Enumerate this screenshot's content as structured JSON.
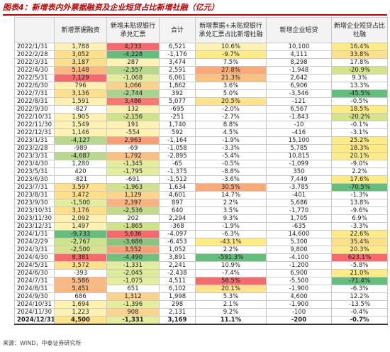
{
  "title": "图表4：新增表内外票据融资及企业短贷占比新增社融（亿元）",
  "source": "来源：WIND，中泰证券研究所",
  "headers": [
    "",
    "新增票据融资",
    "新增未贴现银行承兑汇票",
    "合计",
    "新增票据+未贴现银行承兑汇票占比新增社融",
    "新增企业短贷",
    "新增企业短贷占比社融"
  ],
  "colors": {
    "green": "#63be7b",
    "yellow": "#ffeb84",
    "red": "#f8696b",
    "white": "#ffffff"
  },
  "rows": [
    [
      "2022/1/31",
      "1,788",
      "4,733",
      "6,521",
      "10.6%",
      "10,100",
      "16.4%"
    ],
    [
      "2022/2/28",
      "3,052",
      "-4,228",
      "-1,176",
      "-9.7%",
      "4,111",
      "33.8%"
    ],
    [
      "2022/3/31",
      "3,187",
      "287",
      "3,474",
      "7.5%",
      "8,298",
      "17.8%"
    ],
    [
      "2022/4/30",
      "5,148",
      "-2,557",
      "2,591",
      "27.8%",
      "-1,948",
      "-20.9%"
    ],
    [
      "2022/5/31",
      "7,129",
      "-1,068",
      "6,061",
      "21.3%",
      "2,642",
      "9.3%"
    ],
    [
      "2022/6/30",
      "796",
      "1,066",
      "1,862",
      "3.6%",
      "6,906",
      "13.3%"
    ],
    [
      "2022/7/31",
      "3,136",
      "-2,744",
      "392",
      "5.0%",
      "-3,546",
      "-45.5%"
    ],
    [
      "2022/8/31",
      "1,591",
      "3,486",
      "5,077",
      "20.5%",
      "-121",
      "-0.5%"
    ],
    [
      "2022/9/30",
      "-827",
      "132",
      "-695",
      "-2.0%",
      "6,567",
      "18.5%"
    ],
    [
      "2022/10/31",
      "1,905",
      "-2,156",
      "-251",
      "-2.7%",
      "-1,843",
      "-20.2%"
    ],
    [
      "2022/11/30",
      "1,549",
      "191",
      "1,740",
      "8.8%",
      "-10",
      "-0.1%"
    ],
    [
      "2022/12/31",
      "1,146",
      "-554",
      "592",
      "4.5%",
      "-416",
      "-3.1%"
    ],
    [
      "2023/1/31",
      "-4,127",
      "2,963",
      "-1,164",
      "-1.9%",
      "15,100",
      "25.2%"
    ],
    [
      "2023/2/28",
      "-989",
      "-69",
      "-1,058",
      "-3.3%",
      "5,785",
      "18.3%"
    ],
    [
      "2023/3/31",
      "-4,687",
      "1,792",
      "-2,895",
      "-5.4%",
      "10,815",
      "20.1%"
    ],
    [
      "2023/4/30",
      "1,280",
      "-1,345",
      "-65",
      "-0.5%",
      "-1,099",
      "-9.0%"
    ],
    [
      "2023/5/31",
      "420",
      "-1,795",
      "-1,375",
      "-8.8%",
      "350",
      "2.2%"
    ],
    [
      "2023/6/30",
      "-821",
      "-691",
      "-1,512",
      "-3.6%",
      "7,449",
      "17.6%"
    ],
    [
      "2023/7/31",
      "3,597",
      "-1,963",
      "1,634",
      "30.5%",
      "-3,785",
      "-70.5%"
    ],
    [
      "2023/8/31",
      "3,472",
      "1,129",
      "4,601",
      "14.7%",
      "-401",
      "-1.3%"
    ],
    [
      "2023/9/30",
      "-1,500",
      "2,397",
      "897",
      "2.2%",
      "5,686",
      "13.8%"
    ],
    [
      "2023/10/31",
      "3,176",
      "-2,536",
      "640",
      "3.5%",
      "-1,770",
      "-9.6%"
    ],
    [
      "2023/11/30",
      "2,092",
      "202",
      "2,294",
      "9.3%",
      "1,705",
      "6.9%"
    ],
    [
      "2023/12/31",
      "1,497",
      "-1,865",
      "-368",
      "-1.9%",
      "-635",
      "-3.3%"
    ],
    [
      "2024/1/31",
      "-9,733",
      "5,636",
      "-4,097",
      "-6.3%",
      "14,600",
      "22.6%"
    ],
    [
      "2024/2/29",
      "-2,767",
      "-3,686",
      "-6,453",
      "-43.1%",
      "5,300",
      "35.4%"
    ],
    [
      "2024/3/31",
      "-2,500",
      "3,552",
      "1,052",
      "2.2%",
      "9,800",
      "20.3%"
    ],
    [
      "2024/4/30",
      "8,381",
      "-4,490",
      "3,891",
      "-591.3%",
      "-4,100",
      "623.1%"
    ],
    [
      "2024/5/31",
      "3,572",
      "-1,331",
      "2,241",
      "10.9%",
      "-1,200",
      "-5.8%"
    ],
    [
      "2024/6/30",
      "-393",
      "-2,045",
      "-2,438",
      "-7.4%",
      "6,900",
      "21.0%"
    ],
    [
      "2024/7/31",
      "5,586",
      "-1,075",
      "4,511",
      "58.5%",
      "-5,500",
      "-71.4%"
    ],
    [
      "2024/8/31",
      "5,451",
      "651",
      "6,102",
      "20.1%",
      "-1,900",
      "-6.3%"
    ],
    [
      "2024/9/30",
      "686",
      "1,312",
      "1,998",
      "5.3%",
      "4,600",
      "12.2%"
    ],
    [
      "2024/10/31",
      "1,694",
      "-1,396",
      "298",
      "2.1%",
      "-1,900",
      "-13.5%"
    ],
    [
      "2024/11/30",
      "1,223",
      "908",
      "2,131",
      "9.2%",
      "-100",
      "-0.4%"
    ],
    [
      "2024/12/31",
      "4,500",
      "-1,331",
      "3,169",
      "11.1%",
      "-200",
      "-0.7%"
    ]
  ],
  "cell_colors": [
    [
      "#ffffff",
      "#fff2b0",
      "#f8696b",
      "#ffffff",
      "#fff2b0",
      "#ffffff",
      "#ffeb84"
    ],
    [
      "#ffffff",
      "#ffe08a",
      "#63be7b",
      "#ffffff",
      "#ffeb84",
      "#ffffff",
      "#ffe08a"
    ],
    [
      "#ffffff",
      "#ffe08a",
      "#fff2b0",
      "#ffffff",
      "#ffffff",
      "#ffffff",
      "#ffffff"
    ],
    [
      "#ffffff",
      "#fcb97f",
      "#b9d98a",
      "#ffffff",
      "#fbaa77",
      "#ffffff",
      "#d6e38a"
    ],
    [
      "#ffffff",
      "#f8696b",
      "#e4ed9c",
      "#ffffff",
      "#fcc07f",
      "#ffffff",
      "#ffffff"
    ],
    [
      "#ffffff",
      "#fff2b0",
      "#fbd38c",
      "#ffffff",
      "#ffffff",
      "#ffffff",
      "#ffffff"
    ],
    [
      "#ffffff",
      "#ffe08a",
      "#a8d38a",
      "#ffffff",
      "#ffffff",
      "#ffffff",
      "#63be7b"
    ],
    [
      "#ffffff",
      "#fff2b0",
      "#f8796e",
      "#ffffff",
      "#fce38c",
      "#ffffff",
      "#ffffff"
    ],
    [
      "#ffffff",
      "#ffffff",
      "#fff2b0",
      "#ffffff",
      "#ffffff",
      "#ffffff",
      "#ffeb84"
    ],
    [
      "#ffffff",
      "#fff2b0",
      "#d1e28c",
      "#ffffff",
      "#ffffff",
      "#ffffff",
      "#d6e38a"
    ],
    [
      "#ffffff",
      "#fff2b0",
      "#fff2b0",
      "#ffffff",
      "#ffffff",
      "#ffffff",
      "#ffffff"
    ],
    [
      "#ffffff",
      "#fff2b0",
      "#fff2b0",
      "#ffffff",
      "#ffffff",
      "#ffffff",
      "#ffffff"
    ],
    [
      "#ffffff",
      "#b9d98a",
      "#fa9f75",
      "#ffffff",
      "#ffffff",
      "#ffffff",
      "#ffeb84"
    ],
    [
      "#ffffff",
      "#ffffff",
      "#ffffff",
      "#ffffff",
      "#ffffff",
      "#ffffff",
      "#ffeb84"
    ],
    [
      "#ffffff",
      "#b9d98a",
      "#fbbf7e",
      "#ffffff",
      "#ffffff",
      "#ffffff",
      "#ffeb84"
    ],
    [
      "#ffffff",
      "#ffffff",
      "#e4ed9c",
      "#ffffff",
      "#ffffff",
      "#ffffff",
      "#ffffff"
    ],
    [
      "#ffffff",
      "#ffffff",
      "#e4ed9c",
      "#ffffff",
      "#ffffff",
      "#ffffff",
      "#ffffff"
    ],
    [
      "#ffffff",
      "#ffffff",
      "#ffffff",
      "#ffffff",
      "#ffffff",
      "#ffffff",
      "#ffeb84"
    ],
    [
      "#ffffff",
      "#ffe08a",
      "#d1e28c",
      "#ffffff",
      "#fbaa77",
      "#ffffff",
      "#63be7b"
    ],
    [
      "#ffffff",
      "#ffe08a",
      "#fbd38c",
      "#ffffff",
      "#ffffff",
      "#ffffff",
      "#ffffff"
    ],
    [
      "#ffffff",
      "#e4ed9c",
      "#fbb27d",
      "#ffffff",
      "#ffffff",
      "#ffffff",
      "#ffffff"
    ],
    [
      "#ffffff",
      "#ffe08a",
      "#c3dc8a",
      "#ffffff",
      "#ffffff",
      "#ffffff",
      "#ffffff"
    ],
    [
      "#ffffff",
      "#fff2b0",
      "#ffffff",
      "#ffffff",
      "#ffffff",
      "#ffffff",
      "#ffffff"
    ],
    [
      "#ffffff",
      "#fff2b0",
      "#d1e28c",
      "#ffffff",
      "#ffffff",
      "#ffffff",
      "#ffffff"
    ],
    [
      "#ffffff",
      "#63be7b",
      "#f8696b",
      "#ffffff",
      "#ffffff",
      "#ffffff",
      "#ffeb84"
    ],
    [
      "#ffffff",
      "#d1e28c",
      "#8ac57e",
      "#ffffff",
      "#ffeb84",
      "#ffffff",
      "#ffe08a"
    ],
    [
      "#ffffff",
      "#d6e38a",
      "#fa9f75",
      "#ffffff",
      "#ffffff",
      "#ffffff",
      "#ffeb84"
    ],
    [
      "#ffffff",
      "#f8696b",
      "#6fc17b",
      "#ffffff",
      "#63be7b",
      "#ffffff",
      "#f8696b"
    ],
    [
      "#ffffff",
      "#ffe08a",
      "#e4ed9c",
      "#ffffff",
      "#ffffff",
      "#ffffff",
      "#ffffff"
    ],
    [
      "#ffffff",
      "#ffffff",
      "#ddea96",
      "#ffffff",
      "#ffffff",
      "#ffffff",
      "#ffeb84"
    ],
    [
      "#ffffff",
      "#fcb97f",
      "#e4ed9c",
      "#ffffff",
      "#f8696b",
      "#ffffff",
      "#63be7b"
    ],
    [
      "#ffffff",
      "#fcb97f",
      "#ffffff",
      "#ffffff",
      "#fce38c",
      "#ffffff",
      "#ffffff"
    ],
    [
      "#ffffff",
      "#ffffff",
      "#fbd38c",
      "#ffffff",
      "#ffffff",
      "#ffffff",
      "#ffffff"
    ],
    [
      "#ffffff",
      "#fff2b0",
      "#e4ed9c",
      "#ffffff",
      "#ffffff",
      "#ffffff",
      "#ffffff"
    ],
    [
      "#ffffff",
      "#fff2b0",
      "#fbd38c",
      "#ffffff",
      "#ffffff",
      "#ffffff",
      "#ffffff"
    ],
    [
      "#ffffff",
      "#fce38c",
      "#e4ed9c",
      "#ffffff",
      "#ffffff",
      "#ffffff",
      "#ffffff"
    ]
  ]
}
